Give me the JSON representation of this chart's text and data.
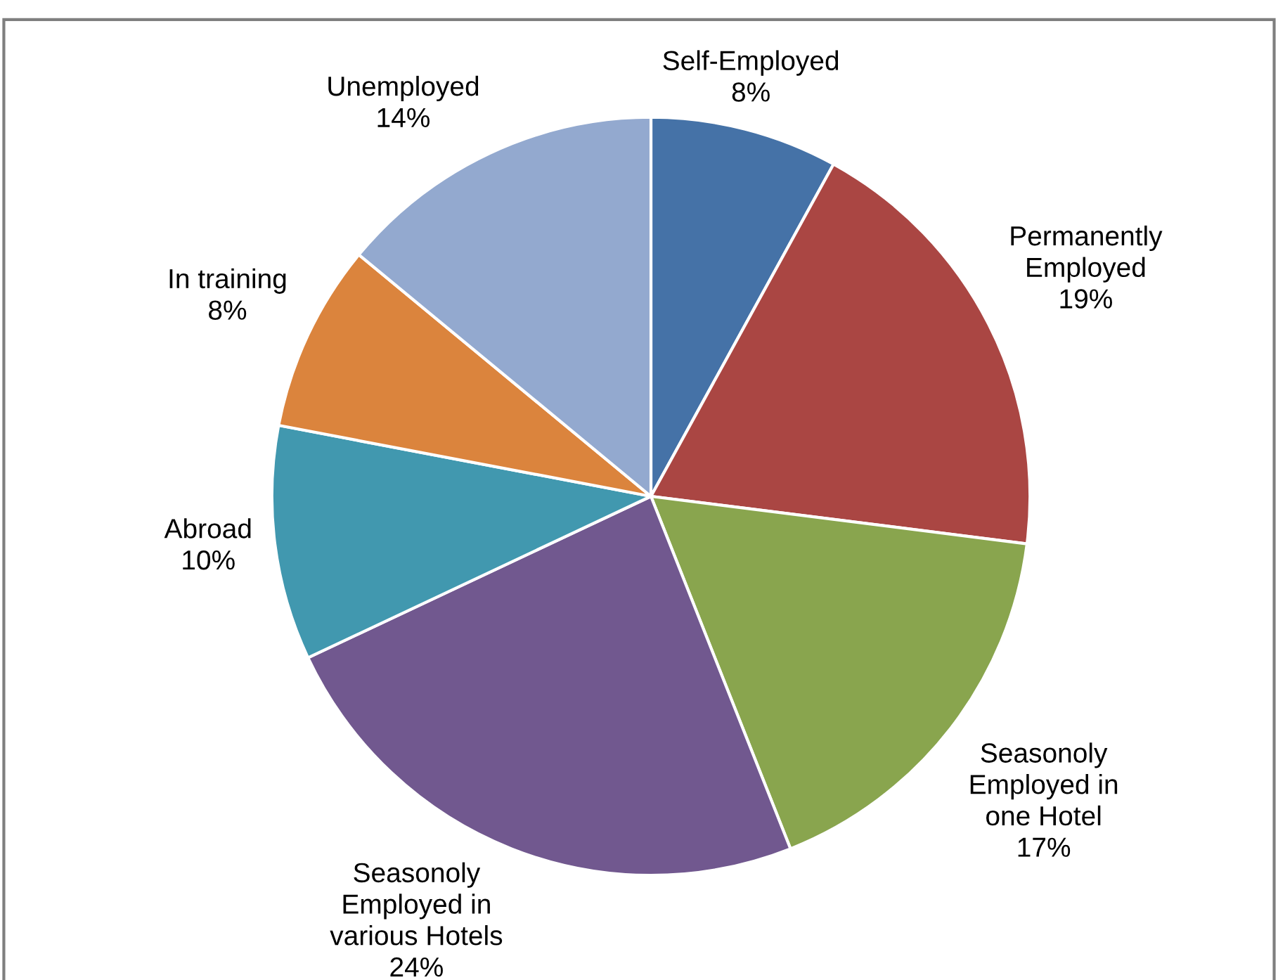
{
  "chart_data": {
    "type": "pie",
    "categories": [
      "Self-Employed",
      "Permanently\nEmployed",
      "Seasonoly\nEmployed in\none Hotel",
      "Seasonoly\nEmployed in\nvarious Hotels",
      "Abroad",
      "In training",
      "Unemployed"
    ],
    "values": [
      8,
      19,
      17,
      24,
      10,
      8,
      14
    ],
    "colors": [
      "#4572a7",
      "#aa4643",
      "#89a54e",
      "#71588f",
      "#4198af",
      "#db843d",
      "#93a9cf"
    ],
    "value_labels": [
      "8%",
      "19%",
      "17%",
      "24%",
      "10%",
      "8%",
      "14%"
    ],
    "legend": false
  }
}
